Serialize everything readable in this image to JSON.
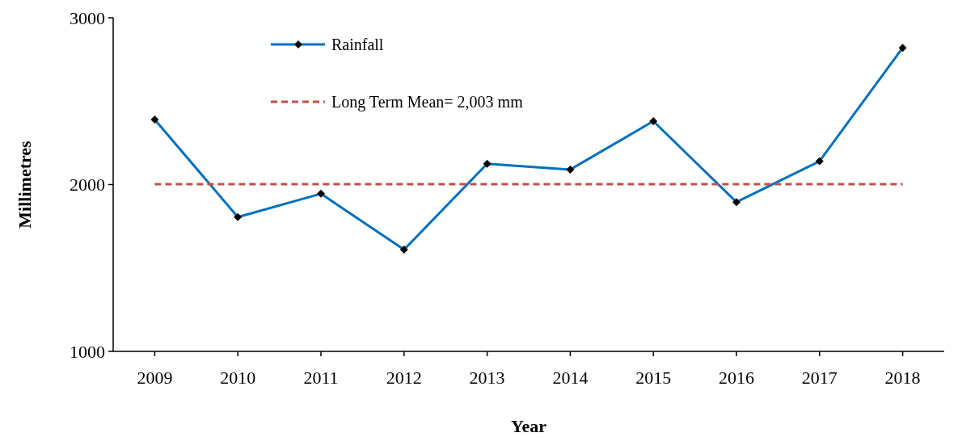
{
  "chart_data": {
    "type": "line",
    "xlabel": "Year",
    "ylabel": "Millimetres",
    "categories": [
      "2009",
      "2010",
      "2011",
      "2012",
      "2013",
      "2014",
      "2015",
      "2016",
      "2017",
      "2018"
    ],
    "series": [
      {
        "name": "Rainfall",
        "color": "#0070c0",
        "marker": "diamond",
        "line_style": "solid",
        "values": [
          2390,
          1805,
          1945,
          1610,
          2125,
          2090,
          2380,
          1895,
          2140,
          2820
        ]
      },
      {
        "name": "Long Term Mean= 2,003 mm",
        "color": "#c0504d",
        "marker": "none",
        "line_style": "dashed",
        "values": [
          2003,
          2003,
          2003,
          2003,
          2003,
          2003,
          2003,
          2003,
          2003,
          2003
        ]
      }
    ],
    "ylim": [
      1000,
      3000
    ],
    "yticks": [
      1000,
      2000,
      3000
    ],
    "grid": false,
    "legend": "top"
  }
}
